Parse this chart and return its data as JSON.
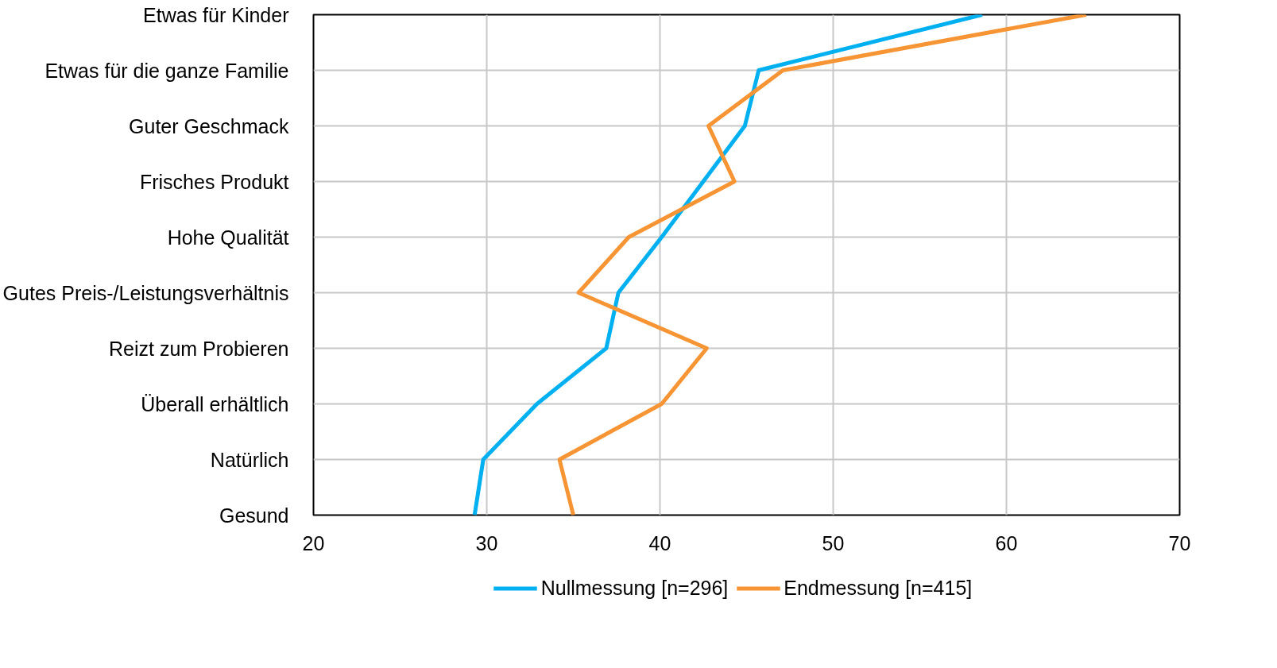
{
  "chart_data": {
    "type": "line",
    "orientation": "horizontal",
    "categories": [
      "Etwas für Kinder",
      "Etwas für die ganze Familie",
      "Guter Geschmack",
      "Frisches Produkt",
      "Hohe Qualität",
      "Gutes Preis-/Leistungsverhältnis",
      "Reizt zum Probieren",
      "Überall erhältlich",
      "Natürlich",
      "Gesund"
    ],
    "series": [
      {
        "name": "Nullmessung [n=296]",
        "color": "#00b0f0",
        "values": [
          58.6,
          45.7,
          44.9,
          42.5,
          40.1,
          37.6,
          36.9,
          32.9,
          29.8,
          29.3
        ]
      },
      {
        "name": "Endmessung [n=415]",
        "color": "#f79433",
        "values": [
          64.6,
          47.1,
          42.8,
          44.3,
          38.2,
          35.3,
          42.7,
          40.1,
          34.2,
          35.0
        ]
      }
    ],
    "xlim": [
      20,
      70
    ],
    "xticks": [
      20,
      30,
      40,
      50,
      60,
      70
    ],
    "grid": true,
    "legend": "bottom",
    "marker": "none",
    "line_style": "solid"
  }
}
